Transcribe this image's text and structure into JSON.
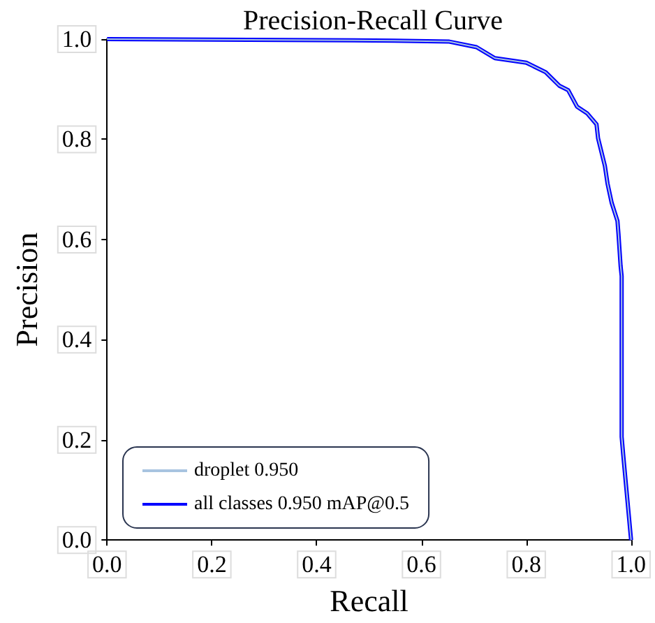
{
  "chart_data": {
    "type": "line",
    "title": "Precision-Recall Curve",
    "xlabel": "Recall",
    "ylabel": "Precision",
    "xlim": [
      0,
      1
    ],
    "ylim": [
      0,
      1
    ],
    "xticks": [
      {
        "value": 0,
        "label": "0.0"
      },
      0.2,
      0.4,
      0.6,
      0.8,
      {
        "value": 1,
        "label": "1.0"
      }
    ],
    "yticks": [
      {
        "value": 0,
        "label": "0.0"
      },
      0.2,
      0.4,
      0.6,
      0.8,
      {
        "value": 1,
        "label": "1.0"
      }
    ],
    "grid": false,
    "legend": "bottom left",
    "marker": "none",
    "line_style": "solid",
    "x": [
      0,
      0.547,
      0.653,
      0.705,
      0.74,
      0.8,
      0.837,
      0.863,
      0.88,
      0.897,
      0.916,
      0.934,
      0.937,
      0.95,
      0.955,
      0.963,
      0.974,
      0.976,
      0.98,
      0.982,
      0.982,
      0.985,
      1.0
    ],
    "series": [
      {
        "name": "all classes 0.950 mAP@0.5",
        "color": "#0000ff",
        "values": [
          1,
          0.997,
          0.995,
          0.984,
          0.962,
          0.953,
          0.934,
          0.907,
          0.898,
          0.865,
          0.852,
          0.83,
          0.802,
          0.747,
          0.712,
          0.673,
          0.637,
          0.61,
          0.547,
          0.527,
          0.206,
          0.17,
          0
        ]
      },
      {
        "name": "droplet 0.950",
        "color": "#a8c4e0",
        "values": [
          1,
          0.997,
          0.995,
          0.984,
          0.962,
          0.953,
          0.934,
          0.907,
          0.898,
          0.865,
          0.852,
          0.83,
          0.802,
          0.747,
          0.712,
          0.673,
          0.637,
          0.61,
          0.547,
          0.527,
          0.206,
          0.17,
          0
        ]
      }
    ]
  }
}
